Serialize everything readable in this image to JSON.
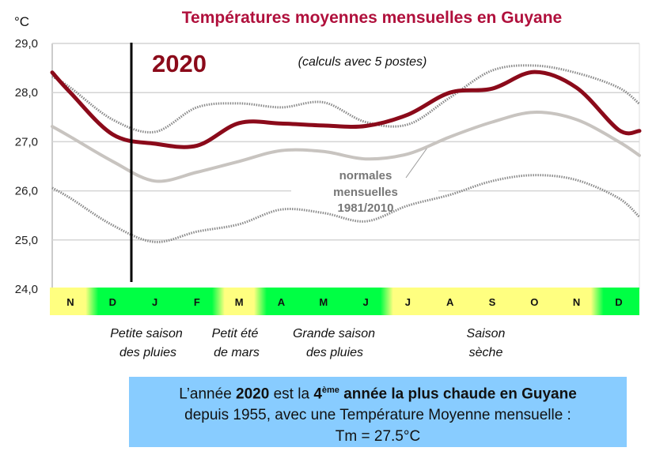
{
  "chart_data": {
    "type": "line",
    "title": "Températures moyennes mensuelles en Guyane",
    "ylabel": "°C",
    "ylim": [
      24.0,
      29.0
    ],
    "yticks": [
      "24,0",
      "25,0",
      "26,0",
      "27,0",
      "28,0",
      "29,0"
    ],
    "grid": true,
    "categories": [
      "N",
      "D",
      "J",
      "F",
      "M",
      "A",
      "M",
      "J",
      "J",
      "A",
      "S",
      "O",
      "N",
      "D"
    ],
    "year_label": "2020",
    "subtitle": "(calculs avec 5 postes)",
    "normals_label": [
      "normales",
      "mensuelles",
      "1981/2010"
    ],
    "year_start_marker": "between D and J",
    "series": [
      {
        "name": "2020",
        "color": "#8b0a1a",
        "style": "thick",
        "start": 28.41,
        "values": [
          28.0,
          27.15,
          26.96,
          26.92,
          27.38,
          27.37,
          27.33,
          27.32,
          27.55,
          28.0,
          28.08,
          28.42,
          28.1,
          27.24
        ],
        "end": 27.22
      },
      {
        "name": "normales mensuelles 1981/2010",
        "color": "#c8c4c0",
        "style": "solid",
        "start": 27.31,
        "values": [
          27.1,
          26.6,
          26.2,
          26.38,
          26.6,
          26.82,
          26.8,
          26.65,
          26.75,
          27.1,
          27.4,
          27.6,
          27.45,
          27.0
        ],
        "end": 26.72
      },
      {
        "color": "#8a8a8a",
        "style": "dotted",
        "start": 28.33,
        "values": [
          28.1,
          27.45,
          27.2,
          27.7,
          27.78,
          27.7,
          27.8,
          27.4,
          27.35,
          27.9,
          28.45,
          28.55,
          28.4,
          28.1
        ],
        "end": 27.77
      },
      {
        "color": "#8a8a8a",
        "style": "dotted",
        "start": 26.06,
        "values": [
          25.85,
          25.3,
          24.96,
          25.17,
          25.32,
          25.62,
          25.55,
          25.38,
          25.7,
          25.92,
          26.2,
          26.32,
          26.22,
          25.85
        ],
        "end": 25.47
      }
    ],
    "season_colors": {
      "dry": "#ffff80",
      "wet": "#00ff44"
    },
    "season_bands": [
      "dry",
      "wet",
      "wet",
      "wet",
      "dry",
      "wet",
      "wet",
      "wet",
      "dry",
      "dry",
      "dry",
      "dry",
      "dry",
      "wet"
    ],
    "seasons": [
      {
        "line1": "Petite saison",
        "line2": "des pluies"
      },
      {
        "line1": "Petit été",
        "line2": "de mars"
      },
      {
        "line1": "Grande saison",
        "line2": "des pluies"
      },
      {
        "line1": "Saison",
        "line2": "sèche"
      }
    ]
  },
  "info": {
    "p1": "L’année ",
    "year": "2020",
    "p2": " est la ",
    "rank": "4",
    "rank_sup": "ème",
    "p3": " année la plus chaude en Guyane",
    "line2": "depuis 1955, avec une Température Moyenne mensuelle :",
    "line3": "Tm = 27.5°C"
  }
}
